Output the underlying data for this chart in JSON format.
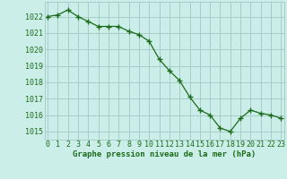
{
  "x": [
    0,
    1,
    2,
    3,
    4,
    5,
    6,
    7,
    8,
    9,
    10,
    11,
    12,
    13,
    14,
    15,
    16,
    17,
    18,
    19,
    20,
    21,
    22,
    23
  ],
  "y": [
    1022.0,
    1022.1,
    1022.4,
    1022.0,
    1021.7,
    1021.4,
    1021.4,
    1021.4,
    1021.1,
    1020.9,
    1020.5,
    1019.4,
    1018.7,
    1018.1,
    1017.1,
    1016.3,
    1016.0,
    1015.2,
    1015.0,
    1015.8,
    1016.3,
    1016.1,
    1016.0,
    1015.8
  ],
  "line_color": "#1a6b1a",
  "marker_color": "#1a6b1a",
  "bg_color": "#cceee8",
  "grid_color": "#a8ccc8",
  "text_color": "#1a6b1a",
  "xlabel": "Graphe pression niveau de la mer (hPa)",
  "ylim": [
    1014.5,
    1022.9
  ],
  "yticks": [
    1015,
    1016,
    1017,
    1018,
    1019,
    1020,
    1021,
    1022
  ],
  "xticks": [
    0,
    1,
    2,
    3,
    4,
    5,
    6,
    7,
    8,
    9,
    10,
    11,
    12,
    13,
    14,
    15,
    16,
    17,
    18,
    19,
    20,
    21,
    22,
    23
  ],
  "xlim": [
    -0.3,
    23.3
  ],
  "tick_fontsize": 6.0,
  "xlabel_fontsize": 6.5
}
